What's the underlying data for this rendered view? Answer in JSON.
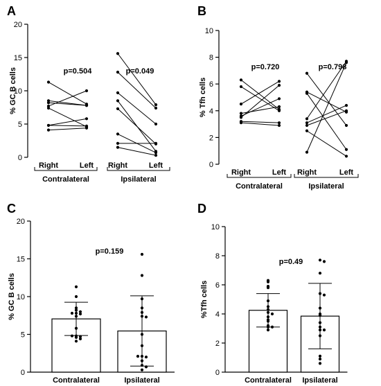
{
  "panels": [
    {
      "letter": "A",
      "type": "paired",
      "ylabel": "% GC B cells",
      "ylim": [
        0,
        20
      ],
      "yticks": [
        0,
        5,
        10,
        15,
        20
      ],
      "categories": [
        "Right",
        "Left",
        "Right",
        "Left"
      ],
      "groups": [
        "Contralateral",
        "Ipsilateral"
      ],
      "pvalues": [
        "p=0.504",
        "p=0.049"
      ],
      "pairs": [
        [
          [
            11.3,
            8.0
          ],
          [
            8.5,
            7.8
          ],
          [
            8.2,
            7.8
          ],
          [
            7.7,
            10.0
          ],
          [
            7.4,
            4.6
          ],
          [
            4.8,
            4.7
          ],
          [
            4.8,
            5.8
          ],
          [
            4.1,
            4.4
          ]
        ],
        [
          [
            15.6,
            7.9
          ],
          [
            12.8,
            7.4
          ],
          [
            9.7,
            5.0
          ],
          [
            8.5,
            0.9
          ],
          [
            7.3,
            2.0
          ],
          [
            3.5,
            0.7
          ],
          [
            2.1,
            2.1
          ],
          [
            1.5,
            0.3
          ]
        ]
      ]
    },
    {
      "letter": "B",
      "type": "paired",
      "ylabel": "% Tfh cells",
      "ylim": [
        0,
        10
      ],
      "yticks": [
        0,
        2,
        4,
        6,
        8,
        10
      ],
      "categories": [
        "Right",
        "Left",
        "Right",
        "Left"
      ],
      "groups": [
        "Contralateral",
        "Ipsilateral"
      ],
      "pvalues": [
        "p=0.720",
        "p=0.798"
      ],
      "pairs": [
        [
          [
            6.3,
            4.1
          ],
          [
            5.8,
            4.0
          ],
          [
            4.5,
            6.2
          ],
          [
            3.8,
            4.3
          ],
          [
            3.6,
            4.9
          ],
          [
            3.5,
            5.9
          ],
          [
            3.2,
            3.1
          ],
          [
            3.1,
            2.9
          ]
        ],
        [
          [
            6.8,
            2.9
          ],
          [
            5.4,
            3.9
          ],
          [
            5.3,
            1.1
          ],
          [
            3.4,
            7.7
          ],
          [
            3.1,
            4.4
          ],
          [
            2.9,
            4.0
          ],
          [
            2.5,
            0.6
          ],
          [
            0.9,
            7.6
          ]
        ]
      ]
    },
    {
      "letter": "C",
      "type": "bar",
      "ylabel": "% GC B cells",
      "ylim": [
        0,
        20
      ],
      "yticks": [
        0,
        5,
        10,
        15,
        20
      ],
      "categories": [
        "Contralateral",
        "Ipsilateral"
      ],
      "pvalue": "p=0.159",
      "means": [
        7.05,
        5.45
      ],
      "sd": [
        2.2,
        4.65
      ],
      "points": [
        [
          11.3,
          10.0,
          8.5,
          8.2,
          8.0,
          7.8,
          7.7,
          7.8,
          7.4,
          5.8,
          4.8,
          4.7,
          4.6,
          4.8,
          4.4,
          4.1
        ],
        [
          15.6,
          12.8,
          9.7,
          8.5,
          7.9,
          7.4,
          7.3,
          5.0,
          3.5,
          2.1,
          2.0,
          2.1,
          1.5,
          0.9,
          0.7,
          0.3
        ]
      ]
    },
    {
      "letter": "D",
      "type": "bar",
      "ylabel": "%Tfh cells",
      "ylim": [
        0,
        10
      ],
      "yticks": [
        0,
        2,
        4,
        6,
        8,
        10
      ],
      "categories": [
        "Contralateral",
        "Ipsilateral"
      ],
      "pvalue": "p=0.49",
      "means": [
        4.25,
        3.85
      ],
      "sd": [
        1.15,
        2.25
      ],
      "points": [
        [
          6.3,
          6.2,
          5.9,
          5.8,
          4.9,
          4.5,
          4.3,
          4.1,
          4.0,
          3.8,
          3.6,
          3.5,
          3.2,
          3.1,
          3.1,
          2.9
        ],
        [
          7.7,
          7.6,
          6.8,
          5.4,
          5.3,
          4.4,
          4.0,
          3.9,
          3.4,
          3.1,
          2.9,
          2.9,
          2.5,
          1.1,
          0.9,
          0.6
        ]
      ]
    }
  ]
}
